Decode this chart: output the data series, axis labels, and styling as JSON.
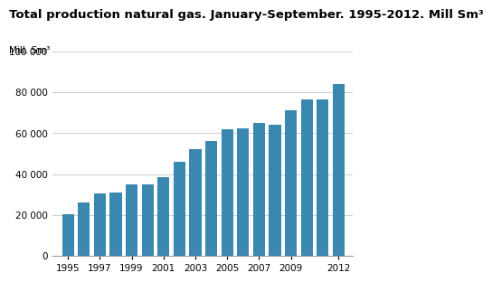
{
  "title": "Total production natural gas. January-September. 1995-2012. Mill Sm³",
  "ylabel": "Mill. Sm³",
  "years": [
    1995,
    1996,
    1997,
    1998,
    1999,
    2000,
    2001,
    2002,
    2003,
    2004,
    2005,
    2006,
    2007,
    2008,
    2009,
    2010,
    2011,
    2012
  ],
  "values": [
    20500,
    26000,
    30500,
    31000,
    35000,
    35000,
    38500,
    46000,
    52000,
    56000,
    62000,
    62500,
    65000,
    64000,
    71000,
    76500,
    76500,
    84000
  ],
  "bar_color": "#3a87b0",
  "ylim": [
    0,
    100000
  ],
  "yticks": [
    0,
    20000,
    40000,
    60000,
    80000,
    100000
  ],
  "xtick_labels": [
    "1995",
    "1997",
    "1999",
    "2001",
    "2003",
    "2005",
    "2007",
    "2009",
    "2012"
  ],
  "xtick_positions": [
    1995,
    1997,
    1999,
    2001,
    2003,
    2005,
    2007,
    2009,
    2012
  ],
  "background_color": "#ffffff",
  "grid_color": "#cccccc",
  "title_fontsize": 9.5,
  "label_fontsize": 7.5,
  "tick_fontsize": 7.5
}
